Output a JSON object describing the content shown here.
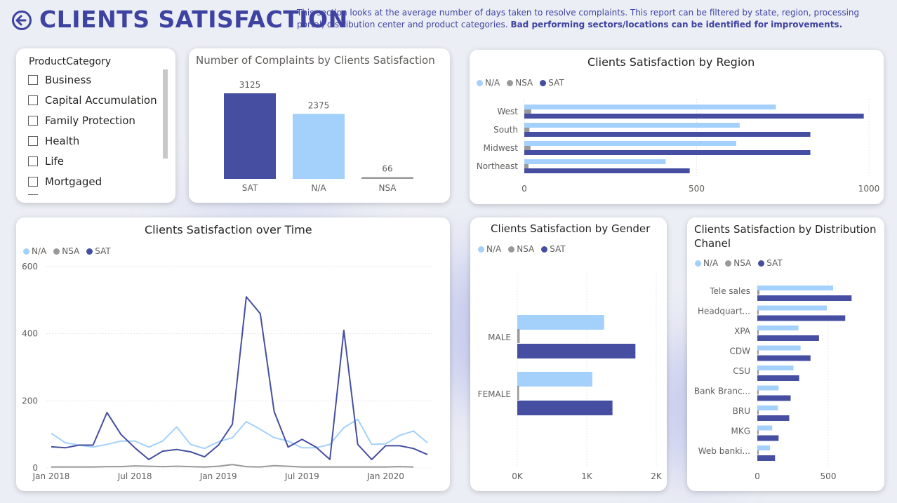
{
  "header": {
    "title": "CLIENTS SATISFACTION",
    "description_normal": "This section looks at the average number of days taken to resolve complaints. This report can be filtered by state, region, processing portal, distribution center and product categories. ",
    "description_bold": "Bad performing sectors/locations can be identified for improvements."
  },
  "colors": {
    "sat": "#454ea0",
    "na": "#a3d1fb",
    "nsa": "#999999",
    "title_blue": "#3e43a1"
  },
  "slicer": {
    "title": "ProductCategory",
    "items": [
      "Business",
      "Capital Accumulation",
      "Family Protection",
      "Health",
      "Life",
      "Mortgaged"
    ]
  },
  "complaints_chart": {
    "title": "Number of Complaints by Clients Satisfaction",
    "chart_data": {
      "type": "bar",
      "categories": [
        "SAT",
        "N/A",
        "NSA"
      ],
      "values": [
        3125,
        2375,
        66
      ],
      "value_labels": [
        "3125",
        "2375",
        "66"
      ]
    }
  },
  "region_chart": {
    "title": "Clients Satisfaction by Region",
    "legend": [
      "N/A",
      "NSA",
      "SAT"
    ],
    "chart_data": {
      "type": "bar",
      "orientation": "horizontal",
      "categories": [
        "West",
        "South",
        "Midwest",
        "Northeast"
      ],
      "series": [
        {
          "name": "N/A",
          "values": [
            730,
            625,
            615,
            410
          ]
        },
        {
          "name": "NSA",
          "values": [
            20,
            15,
            18,
            12
          ]
        },
        {
          "name": "SAT",
          "values": [
            985,
            830,
            830,
            480
          ]
        }
      ],
      "xlim": [
        0,
        1000
      ],
      "xticks": [
        "0",
        "500",
        "1000"
      ]
    }
  },
  "time_chart": {
    "title": "Clients Satisfaction over Time",
    "legend": [
      "N/A",
      "NSA",
      "SAT"
    ],
    "chart_data": {
      "type": "line",
      "x": [
        "2018-01",
        "2018-02",
        "2018-03",
        "2018-04",
        "2018-05",
        "2018-06",
        "2018-07",
        "2018-08",
        "2018-09",
        "2018-10",
        "2018-11",
        "2018-12",
        "2019-01",
        "2019-02",
        "2019-03",
        "2019-04",
        "2019-05",
        "2019-06",
        "2019-07",
        "2019-08",
        "2019-09",
        "2019-10",
        "2019-11",
        "2019-12",
        "2020-01",
        "2020-02",
        "2020-03",
        "2020-04"
      ],
      "series": [
        {
          "name": "N/A",
          "values": [
            103,
            75,
            68,
            62,
            70,
            80,
            80,
            62,
            80,
            122,
            70,
            58,
            78,
            90,
            138,
            115,
            90,
            80,
            60,
            60,
            70,
            120,
            145,
            70,
            72,
            97,
            110,
            75
          ]
        },
        {
          "name": "NSA",
          "values": [
            3,
            3,
            3,
            3,
            4,
            4,
            6,
            5,
            4,
            5,
            4,
            3,
            5,
            10,
            4,
            3,
            7,
            5,
            3,
            3,
            3,
            3,
            3,
            3,
            3,
            4,
            3,
            null
          ]
        },
        {
          "name": "SAT",
          "values": [
            63,
            60,
            68,
            68,
            165,
            100,
            60,
            25,
            50,
            55,
            48,
            33,
            68,
            130,
            510,
            460,
            168,
            62,
            85,
            62,
            25,
            410,
            70,
            25,
            66,
            66,
            58,
            40
          ]
        }
      ],
      "ylim": [
        0,
        600
      ],
      "yticks": [
        "0",
        "200",
        "400",
        "600"
      ],
      "xticks": [
        "Jan 2018",
        "Jul 2018",
        "Jan 2019",
        "Jul 2019",
        "Jan 2020"
      ]
    }
  },
  "gender_chart": {
    "title": "Clients Satisfaction by Gender",
    "legend": [
      "N/A",
      "NSA",
      "SAT"
    ],
    "chart_data": {
      "type": "bar",
      "orientation": "horizontal",
      "categories": [
        "MALE",
        "FEMALE"
      ],
      "series": [
        {
          "name": "N/A",
          "values": [
            1250,
            1080
          ]
        },
        {
          "name": "NSA",
          "values": [
            35,
            25
          ]
        },
        {
          "name": "SAT",
          "values": [
            1700,
            1370
          ]
        }
      ],
      "xlim": [
        0,
        2000
      ],
      "xticks": [
        "0K",
        "1K",
        "2K"
      ]
    }
  },
  "channel_chart": {
    "title_line1": "Clients Satisfaction by Distribution",
    "title_line2": "Chanel",
    "legend": [
      "N/A",
      "NSA",
      "SAT"
    ],
    "chart_data": {
      "type": "bar",
      "orientation": "horizontal",
      "categories": [
        "Tele sales",
        "Headquart...",
        "XPA",
        "CDW",
        "CSU",
        "Bank Branc...",
        "BRU",
        "MKG",
        "Web banki..."
      ],
      "series": [
        {
          "name": "N/A",
          "values": [
            535,
            490,
            290,
            305,
            255,
            150,
            145,
            105,
            90
          ]
        },
        {
          "name": "NSA",
          "values": [
            15,
            10,
            8,
            8,
            6,
            5,
            5,
            4,
            4
          ]
        },
        {
          "name": "SAT",
          "values": [
            665,
            620,
            435,
            375,
            295,
            235,
            225,
            150,
            125
          ]
        }
      ],
      "xlim": [
        0,
        1000
      ],
      "xticks": [
        "0",
        "500"
      ]
    }
  }
}
